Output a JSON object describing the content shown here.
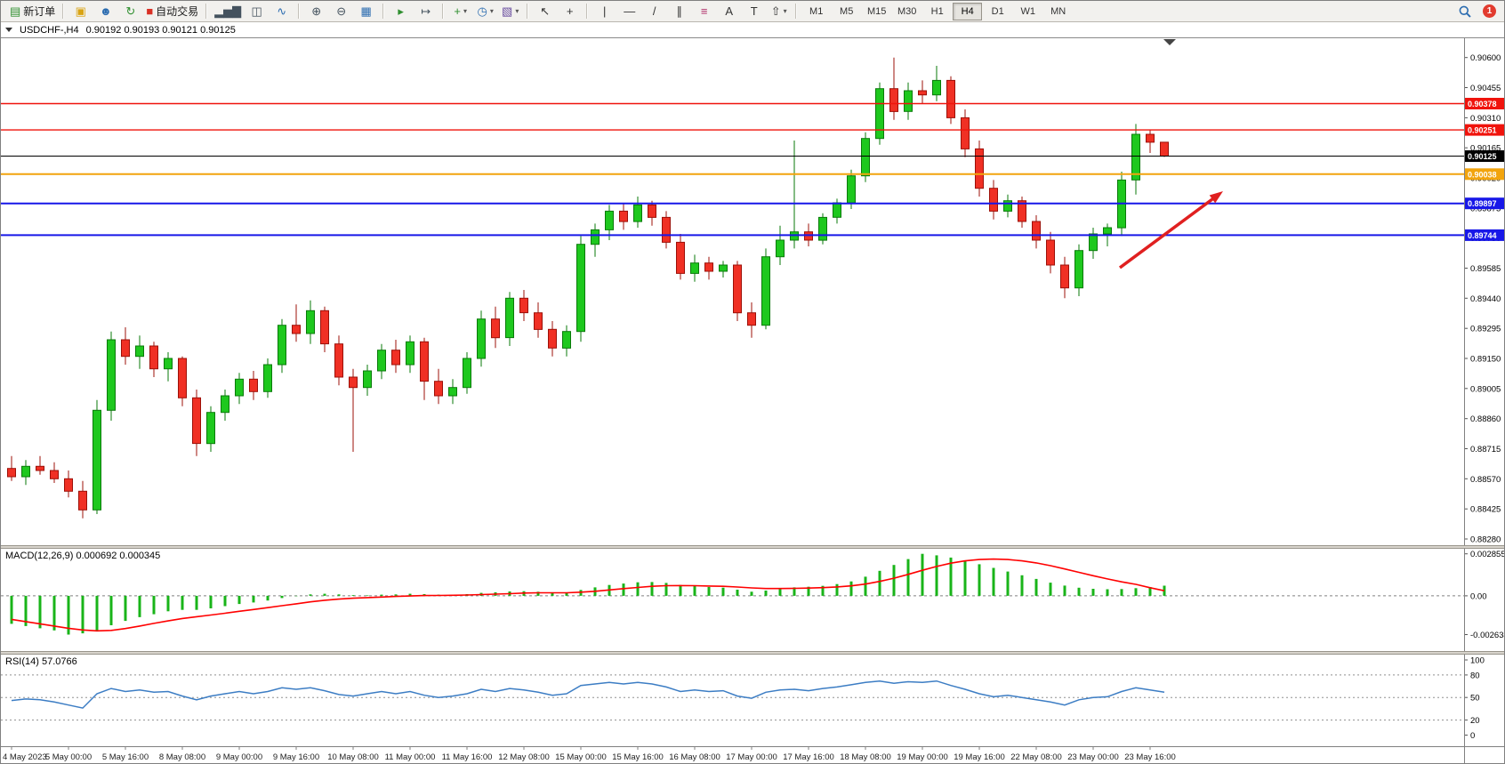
{
  "toolbar": {
    "groups": [
      {
        "items": [
          {
            "name": "new-order-button",
            "glyph": "▤",
            "glyph_color": "#2f8f2f",
            "label": "新订单"
          }
        ]
      },
      {
        "items": [
          {
            "name": "toolbox-button",
            "glyph": "▣",
            "glyph_color": "#d9a312"
          },
          {
            "name": "profile-button",
            "glyph": "☻",
            "glyph_color": "#2b6cb0"
          },
          {
            "name": "refresh-button",
            "glyph": "↻",
            "glyph_color": "#2f8f2f"
          },
          {
            "name": "auto-trading-button",
            "glyph": "■",
            "glyph_color": "#d93025",
            "label": "自动交易"
          }
        ]
      },
      {
        "items": [
          {
            "name": "bar-chart-button",
            "glyph": "▂▅▇",
            "glyph_color": "#44525e"
          },
          {
            "name": "candlestick-chart-button",
            "glyph": "◫",
            "glyph_color": "#44525e"
          },
          {
            "name": "line-chart-button",
            "glyph": "∿",
            "glyph_color": "#2b6cb0"
          }
        ]
      },
      {
        "items": [
          {
            "name": "zoom-in-button",
            "glyph": "⊕",
            "glyph_color": "#44525e"
          },
          {
            "name": "zoom-out-button",
            "glyph": "⊖",
            "glyph_color": "#44525e"
          },
          {
            "name": "tile-windows-button",
            "glyph": "▦",
            "glyph_color": "#2b6cb0"
          }
        ]
      },
      {
        "items": [
          {
            "name": "auto-scroll-button",
            "glyph": "▸",
            "glyph_color": "#2f8f2f"
          },
          {
            "name": "chart-shift-button",
            "glyph": "↦",
            "glyph_color": "#44525e"
          }
        ]
      },
      {
        "items": [
          {
            "name": "indicators-button",
            "glyph": "+",
            "glyph_color": "#2f8f2f",
            "dropdown": true
          },
          {
            "name": "periods-button",
            "glyph": "◷",
            "glyph_color": "#2b6cb0",
            "dropdown": true
          },
          {
            "name": "template-button",
            "glyph": "▧",
            "glyph_color": "#6b4fa0",
            "dropdown": true
          }
        ]
      },
      {
        "items": [
          {
            "name": "cursor-button",
            "glyph": "↖",
            "glyph_color": "#333333"
          },
          {
            "name": "crosshair-button",
            "glyph": "+",
            "glyph_color": "#333333"
          }
        ]
      },
      {
        "items": [
          {
            "name": "vertical-line-button",
            "glyph": "|",
            "glyph_color": "#333333"
          },
          {
            "name": "horizontal-line-button",
            "glyph": "—",
            "glyph_color": "#333333"
          },
          {
            "name": "trendline-button",
            "glyph": "/",
            "glyph_color": "#333333"
          },
          {
            "name": "channel-button",
            "glyph": "∥",
            "glyph_color": "#333333"
          },
          {
            "name": "fibonacci-button",
            "glyph": "≡",
            "glyph_color": "#b0306a"
          },
          {
            "name": "text-button",
            "glyph": "A",
            "glyph_color": "#333333"
          },
          {
            "name": "label-button",
            "glyph": "T",
            "glyph_color": "#333333"
          },
          {
            "name": "shapes-button",
            "glyph": "⇧",
            "glyph_color": "#333333",
            "dropdown": true
          }
        ]
      }
    ],
    "timeframes": [
      "M1",
      "M5",
      "M15",
      "M30",
      "H1",
      "H4",
      "D1",
      "W1",
      "MN"
    ],
    "active_timeframe": "H4",
    "badge": "1"
  },
  "chart": {
    "symbol_title": "USDCHF-,H4",
    "ohlc_text": "0.90192 0.90193 0.90121 0.90125",
    "price_axis_labels": [
      "0.90600",
      "0.90455",
      "0.90310",
      "0.90165",
      "0.90020",
      "0.89875",
      "0.89730",
      "0.89585",
      "0.89440",
      "0.89295",
      "0.89150",
      "0.89005",
      "0.88860",
      "0.88715",
      "0.88570",
      "0.88425",
      "0.88280"
    ],
    "hlines": [
      {
        "price": 0.90378,
        "label": "0.90378",
        "color": "#f0130c",
        "width": 1.4,
        "tag": "#f0130c",
        "kind": "resistance-line"
      },
      {
        "price": 0.90251,
        "label": "0.90251",
        "color": "#f0130c",
        "width": 1.4,
        "tag": "#f0130c",
        "kind": "resistance-line"
      },
      {
        "price": 0.90125,
        "label": "0.90125",
        "color": "#000000",
        "width": 1,
        "tag": "#000000",
        "kind": "current-price-line"
      },
      {
        "price": 0.90038,
        "label": "0.90038",
        "color": "#f2a40d",
        "width": 2,
        "tag": "#f2a40d",
        "kind": "pivot-line"
      },
      {
        "price": 0.89897,
        "label": "0.89897",
        "color": "#1717e8",
        "width": 2,
        "tag": "#1717e8",
        "kind": "support-line"
      },
      {
        "price": 0.89744,
        "label": "0.89744",
        "color": "#1717e8",
        "width": 2,
        "tag": "#1717e8",
        "kind": "support-line"
      }
    ],
    "annotation_arrow": {
      "direction": "up-right",
      "target_price": 0.89897,
      "color": "#e02020"
    },
    "colors": {
      "bull": "#1ec81e",
      "bull_border": "#0a7a0a",
      "bear": "#f03024",
      "bear_border": "#9c1008",
      "macd_histogram": "#19b419",
      "macd_signal": "#ff0000",
      "rsi_line": "#3c7dc4",
      "axis_text": "#000000",
      "background": "#ffffff"
    }
  },
  "panels": {
    "macd_label": "MACD(12,26,9) 0.000692 0.000345",
    "rsi_label": "RSI(14) 57.0766"
  },
  "chart_data": [
    {
      "type": "candlestick",
      "title": "USDCHF- H4",
      "start": "2023.05.04 08:00",
      "interval_hours": 4,
      "skip_weekends": true,
      "ylim": [
        0.8825,
        0.90693
      ],
      "x_tick_every": 4,
      "x_tick_labels": [
        "4 May 2023",
        "5 May 00:00",
        "5 May 16:00",
        "8 May 08:00",
        "9 May 00:00",
        "9 May 16:00",
        "10 May 08:00",
        "11 May 00:00",
        "11 May 16:00",
        "12 May 08:00",
        "15 May 00:00",
        "15 May 16:00",
        "16 May 08:00",
        "17 May 00:00",
        "17 May 16:00",
        "18 May 08:00",
        "19 May 00:00",
        "19 May 16:00",
        "22 May 08:00",
        "23 May 00:00",
        "23 May 16:00"
      ],
      "ohlc": [
        [
          0.8862,
          0.8868,
          0.8856,
          0.8858
        ],
        [
          0.8858,
          0.8866,
          0.8854,
          0.8863
        ],
        [
          0.8863,
          0.8868,
          0.8859,
          0.8861
        ],
        [
          0.8861,
          0.8865,
          0.8855,
          0.8857
        ],
        [
          0.8857,
          0.8861,
          0.8848,
          0.8851
        ],
        [
          0.8851,
          0.8856,
          0.8838,
          0.8842
        ],
        [
          0.8842,
          0.8895,
          0.884,
          0.889
        ],
        [
          0.889,
          0.8928,
          0.8885,
          0.8924
        ],
        [
          0.8924,
          0.893,
          0.8912,
          0.8916
        ],
        [
          0.8916,
          0.8926,
          0.891,
          0.8921
        ],
        [
          0.8921,
          0.8923,
          0.8906,
          0.891
        ],
        [
          0.891,
          0.8918,
          0.8904,
          0.8915
        ],
        [
          0.8915,
          0.8916,
          0.8892,
          0.8896
        ],
        [
          0.8896,
          0.89,
          0.8868,
          0.8874
        ],
        [
          0.8874,
          0.8892,
          0.887,
          0.8889
        ],
        [
          0.8889,
          0.89,
          0.8885,
          0.8897
        ],
        [
          0.8897,
          0.8908,
          0.8893,
          0.8905
        ],
        [
          0.8905,
          0.8909,
          0.8895,
          0.8899
        ],
        [
          0.8899,
          0.8915,
          0.8896,
          0.8912
        ],
        [
          0.8912,
          0.8934,
          0.8908,
          0.8931
        ],
        [
          0.8931,
          0.8941,
          0.8923,
          0.8927
        ],
        [
          0.8927,
          0.8943,
          0.8922,
          0.8938
        ],
        [
          0.8938,
          0.894,
          0.8918,
          0.8922
        ],
        [
          0.8922,
          0.8926,
          0.8902,
          0.8906
        ],
        [
          0.8906,
          0.891,
          0.887,
          0.8901
        ],
        [
          0.8901,
          0.8912,
          0.8897,
          0.8909
        ],
        [
          0.8909,
          0.8922,
          0.8905,
          0.8919
        ],
        [
          0.8919,
          0.8924,
          0.8908,
          0.8912
        ],
        [
          0.8912,
          0.8926,
          0.8908,
          0.8923
        ],
        [
          0.8923,
          0.8925,
          0.8895,
          0.8904
        ],
        [
          0.8904,
          0.891,
          0.8893,
          0.8897
        ],
        [
          0.8897,
          0.8905,
          0.8893,
          0.8901
        ],
        [
          0.8901,
          0.8918,
          0.8898,
          0.8915
        ],
        [
          0.8915,
          0.8938,
          0.8911,
          0.8934
        ],
        [
          0.8934,
          0.894,
          0.892,
          0.8925
        ],
        [
          0.8925,
          0.8947,
          0.8921,
          0.8944
        ],
        [
          0.8944,
          0.8948,
          0.8933,
          0.8937
        ],
        [
          0.8937,
          0.8942,
          0.8925,
          0.8929
        ],
        [
          0.8929,
          0.8933,
          0.8916,
          0.892
        ],
        [
          0.892,
          0.8931,
          0.8916,
          0.8928
        ],
        [
          0.8928,
          0.8974,
          0.8923,
          0.897
        ],
        [
          0.897,
          0.898,
          0.8964,
          0.8977
        ],
        [
          0.8977,
          0.8989,
          0.8972,
          0.8986
        ],
        [
          0.8986,
          0.899,
          0.8977,
          0.8981
        ],
        [
          0.8981,
          0.8993,
          0.8978,
          0.8989
        ],
        [
          0.8989,
          0.8991,
          0.8979,
          0.8983
        ],
        [
          0.8983,
          0.8986,
          0.8968,
          0.8971
        ],
        [
          0.8971,
          0.8975,
          0.8953,
          0.8956
        ],
        [
          0.8956,
          0.8965,
          0.8952,
          0.8961
        ],
        [
          0.8961,
          0.8964,
          0.8953,
          0.8957
        ],
        [
          0.8957,
          0.8962,
          0.8954,
          0.896
        ],
        [
          0.896,
          0.8962,
          0.8933,
          0.8937
        ],
        [
          0.8937,
          0.8942,
          0.8925,
          0.8931
        ],
        [
          0.8931,
          0.8968,
          0.8929,
          0.8964
        ],
        [
          0.8964,
          0.8979,
          0.896,
          0.8972
        ],
        [
          0.8972,
          0.902,
          0.8968,
          0.8976
        ],
        [
          0.8976,
          0.898,
          0.8969,
          0.8972
        ],
        [
          0.8972,
          0.8985,
          0.897,
          0.8983
        ],
        [
          0.8983,
          0.8992,
          0.898,
          0.899
        ],
        [
          0.899,
          0.9006,
          0.8987,
          0.9003
        ],
        [
          0.9003,
          0.9024,
          0.9,
          0.9021
        ],
        [
          0.9021,
          0.9048,
          0.9018,
          0.9045
        ],
        [
          0.9045,
          0.906,
          0.903,
          0.9034
        ],
        [
          0.9034,
          0.9048,
          0.903,
          0.9044
        ],
        [
          0.9044,
          0.9049,
          0.9038,
          0.9042
        ],
        [
          0.9042,
          0.9056,
          0.9039,
          0.9049
        ],
        [
          0.9049,
          0.9051,
          0.9028,
          0.9031
        ],
        [
          0.9031,
          0.9035,
          0.9012,
          0.9016
        ],
        [
          0.9016,
          0.902,
          0.8993,
          0.8997
        ],
        [
          0.8997,
          0.9001,
          0.8982,
          0.8986
        ],
        [
          0.8986,
          0.8994,
          0.8983,
          0.8991
        ],
        [
          0.8991,
          0.8993,
          0.8978,
          0.8981
        ],
        [
          0.8981,
          0.8984,
          0.8968,
          0.8972
        ],
        [
          0.8972,
          0.8976,
          0.8956,
          0.896
        ],
        [
          0.896,
          0.8964,
          0.8944,
          0.8949
        ],
        [
          0.8949,
          0.897,
          0.8945,
          0.8967
        ],
        [
          0.8967,
          0.8978,
          0.8963,
          0.8975
        ],
        [
          0.8975,
          0.898,
          0.8969,
          0.8978
        ],
        [
          0.8978,
          0.9005,
          0.8974,
          0.9001
        ],
        [
          0.9001,
          0.9028,
          0.8994,
          0.9023
        ],
        [
          0.9023,
          0.9025,
          0.9014,
          0.90192
        ],
        [
          0.90192,
          0.90193,
          0.90121,
          0.90125
        ]
      ]
    },
    {
      "type": "bar",
      "title": "MACD(12,26,9)",
      "current": {
        "macd": 0.000692,
        "signal": 0.000345
      },
      "axis_labels": [
        "0.002855",
        "0.00",
        "-0.002634"
      ],
      "ylim": [
        -0.00375,
        0.0032
      ],
      "values": [
        -0.0019,
        -0.00205,
        -0.0022,
        -0.00235,
        -0.002634,
        -0.00255,
        -0.0024,
        -0.002,
        -0.0017,
        -0.00145,
        -0.00125,
        -0.00105,
        -0.00095,
        -0.00095,
        -0.00085,
        -0.0007,
        -0.00055,
        -0.00045,
        -0.00032,
        -0.00015,
        -2e-05,
        0.0001,
        0.00014,
        0.0001,
        5e-05,
        4e-05,
        8e-05,
        0.0001,
        0.00014,
        0.00012,
        8e-05,
        8e-05,
        0.00012,
        0.0002,
        0.00024,
        0.0003,
        0.00032,
        0.00028,
        0.00022,
        0.0002,
        0.0004,
        0.00058,
        0.00074,
        0.00084,
        0.00092,
        0.00094,
        0.00088,
        0.00074,
        0.00066,
        0.0006,
        0.00056,
        0.00042,
        0.00028,
        0.00036,
        0.00048,
        0.00058,
        0.00062,
        0.00068,
        0.0008,
        0.00098,
        0.0013,
        0.0017,
        0.0021,
        0.0025,
        0.002855,
        0.00275,
        0.0026,
        0.0024,
        0.00215,
        0.0019,
        0.00165,
        0.0014,
        0.00115,
        0.0009,
        0.0007,
        0.00055,
        0.00048,
        0.00045,
        0.00046,
        0.00052,
        0.0006,
        0.000692
      ],
      "series": [
        {
          "name": "signal",
          "values": [
            -0.0016,
            -0.00175,
            -0.0019,
            -0.00205,
            -0.0022,
            -0.00232,
            -0.00238,
            -0.00235,
            -0.00222,
            -0.00205,
            -0.00187,
            -0.0017,
            -0.00154,
            -0.00142,
            -0.0013,
            -0.00118,
            -0.00105,
            -0.00093,
            -0.0008,
            -0.00067,
            -0.00054,
            -0.00041,
            -0.0003,
            -0.00022,
            -0.00016,
            -0.00012,
            -8e-05,
            -4e-05,
            -1e-05,
            2e-05,
            3e-05,
            4e-05,
            6e-05,
            9e-05,
            0.00012,
            0.00015,
            0.00019,
            0.00021,
            0.00021,
            0.00021,
            0.00025,
            0.00031,
            0.0004,
            0.00049,
            0.00057,
            0.00065,
            0.00069,
            0.0007,
            0.00069,
            0.00067,
            0.00065,
            0.0006,
            0.00054,
            0.0005,
            0.0005,
            0.00051,
            0.00053,
            0.00056,
            0.00061,
            0.00068,
            0.0008,
            0.00098,
            0.0012,
            0.00146,
            0.00174,
            0.002,
            0.00222,
            0.00238,
            0.00247,
            0.0025,
            0.00247,
            0.00238,
            0.00224,
            0.00205,
            0.00183,
            0.0016,
            0.00137,
            0.00115,
            0.00095,
            0.00078,
            0.00055,
            0.000345
          ]
        }
      ]
    },
    {
      "type": "line",
      "title": "RSI(14)",
      "current": 57.0766,
      "axis_labels": [
        "100",
        "80",
        "50",
        "20",
        "0"
      ],
      "levels": [
        80,
        50,
        20
      ],
      "ylim": [
        0,
        100
      ],
      "values": [
        46,
        48,
        47,
        44,
        40,
        36,
        55,
        62,
        58,
        60,
        57,
        58,
        52,
        47,
        52,
        55,
        58,
        55,
        58,
        63,
        61,
        63,
        59,
        54,
        52,
        55,
        58,
        55,
        58,
        53,
        50,
        52,
        55,
        61,
        58,
        62,
        60,
        57,
        53,
        55,
        66,
        68,
        70,
        68,
        70,
        68,
        64,
        58,
        60,
        58,
        59,
        52,
        49,
        57,
        60,
        61,
        59,
        62,
        64,
        67,
        70,
        72,
        69,
        71,
        70,
        72,
        66,
        61,
        55,
        51,
        53,
        50,
        47,
        44,
        40,
        47,
        50,
        51,
        58,
        63,
        60,
        57.0766
      ]
    }
  ]
}
